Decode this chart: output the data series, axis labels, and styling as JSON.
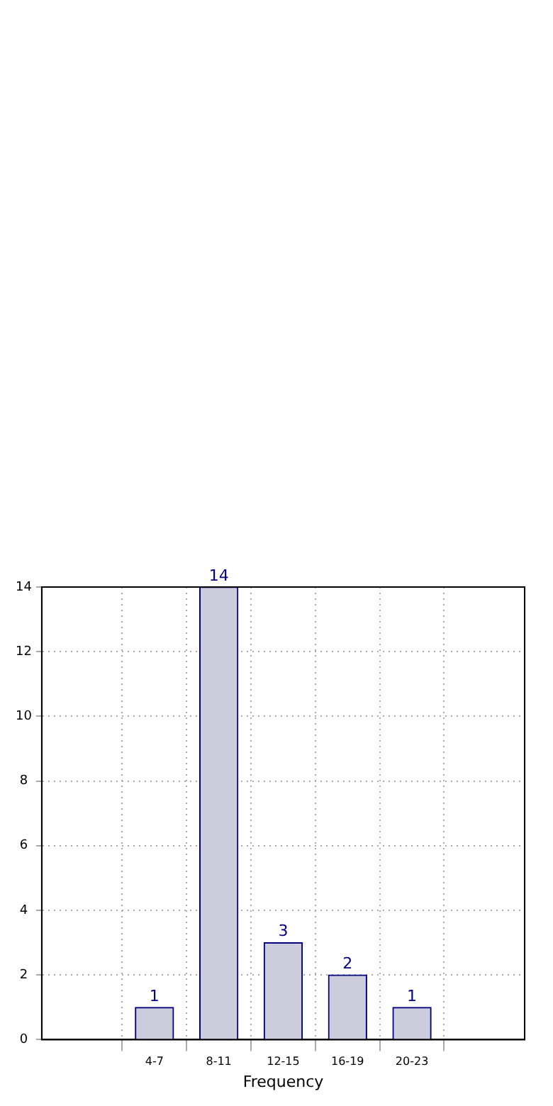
{
  "chart_data": {
    "type": "bar",
    "xlabel": "Frequency",
    "categories": [
      "4-7",
      "8-11",
      "12-15",
      "16-19",
      "20-23"
    ],
    "series": [
      {
        "color": "#ccccdd",
        "values": [
          1,
          14,
          3,
          2,
          1
        ]
      }
    ],
    "ylim": [
      0,
      14
    ],
    "yticks": [
      0,
      2,
      4,
      6,
      8,
      10,
      12,
      14
    ],
    "grid": true,
    "data_labels": true,
    "legend": false
  }
}
